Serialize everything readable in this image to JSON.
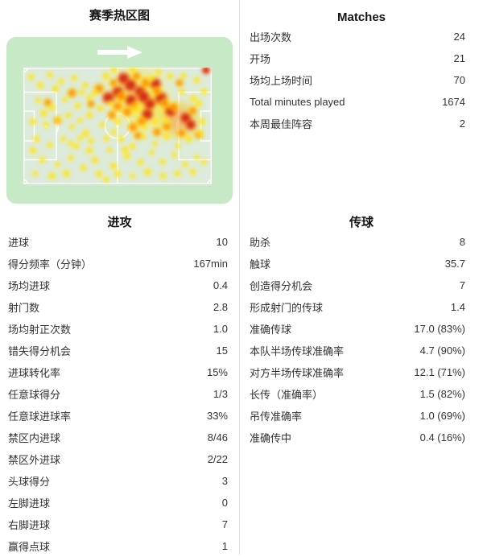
{
  "page": {
    "background": "#ffffff",
    "divider_color": "#e4e4e4",
    "text_color": "#333333",
    "title_color": "#151515"
  },
  "heatmap_section": {
    "title": "赛季热区图",
    "pitch": {
      "container_color": "#c7e9c5",
      "field_color": "#dcebdb",
      "line_color": "#ffffff",
      "arrow_color": "#ffffff",
      "heat_colors": {
        "low": "#ffe200",
        "mid": "#ff8a00",
        "high": "#cc2112"
      }
    },
    "points": [
      [
        60,
        22,
        0.5,
        120
      ],
      [
        68,
        35,
        0.5,
        90
      ],
      [
        83,
        45,
        0.55,
        70
      ],
      [
        53,
        9,
        1
      ],
      [
        57,
        15,
        0.95
      ],
      [
        50,
        21,
        0.9
      ],
      [
        62,
        21,
        1
      ],
      [
        67,
        31,
        0.95
      ],
      [
        66,
        40,
        0.9
      ],
      [
        57,
        28,
        0.9
      ],
      [
        73,
        26,
        0.9
      ],
      [
        86,
        43,
        0.95
      ],
      [
        89,
        49,
        0.9
      ],
      [
        97,
        2,
        1,
        16
      ],
      [
        45,
        26,
        0.88
      ],
      [
        70,
        14,
        0.9
      ],
      [
        78,
        37,
        0.88
      ],
      [
        48,
        13,
        0.7
      ],
      [
        60,
        7,
        0.65
      ],
      [
        65,
        13,
        0.7
      ],
      [
        71,
        20,
        0.75
      ],
      [
        75,
        31,
        0.7
      ],
      [
        63,
        46,
        0.65
      ],
      [
        55,
        38,
        0.7
      ],
      [
        50,
        33,
        0.65
      ],
      [
        80,
        34,
        0.7
      ],
      [
        84,
        56,
        0.65
      ],
      [
        90,
        37,
        0.7
      ],
      [
        47,
        41,
        0.6
      ],
      [
        58,
        51,
        0.65
      ],
      [
        40,
        18,
        0.6
      ],
      [
        36,
        31,
        0.6
      ],
      [
        61,
        58,
        0.6
      ],
      [
        93,
        57,
        0.6
      ],
      [
        26,
        22,
        0.6
      ],
      [
        18,
        45,
        0.6
      ],
      [
        13,
        30,
        0.65
      ],
      [
        83,
        13,
        0.6
      ],
      [
        76,
        50,
        0.65
      ],
      [
        71,
        55,
        0.6
      ],
      [
        52,
        25,
        0.75
      ],
      [
        59,
        33,
        0.8
      ],
      [
        64,
        25,
        0.85
      ],
      [
        4,
        8
      ],
      [
        9,
        15
      ],
      [
        14,
        6
      ],
      [
        20,
        12
      ],
      [
        27,
        9
      ],
      [
        33,
        15
      ],
      [
        8,
        28
      ],
      [
        15,
        34
      ],
      [
        22,
        27
      ],
      [
        29,
        33
      ],
      [
        35,
        41
      ],
      [
        5,
        46
      ],
      [
        12,
        49
      ],
      [
        19,
        44
      ],
      [
        26,
        51
      ],
      [
        33,
        56
      ],
      [
        7,
        61
      ],
      [
        14,
        66
      ],
      [
        21,
        61
      ],
      [
        28,
        67
      ],
      [
        35,
        71
      ],
      [
        10,
        79
      ],
      [
        18,
        83
      ],
      [
        25,
        77
      ],
      [
        32,
        86
      ],
      [
        6,
        91
      ],
      [
        15,
        93
      ],
      [
        23,
        91
      ],
      [
        38,
        79
      ],
      [
        40,
        91
      ],
      [
        44,
        61
      ],
      [
        42,
        49
      ],
      [
        38,
        22
      ],
      [
        44,
        7
      ],
      [
        46,
        71
      ],
      [
        48,
        84
      ],
      [
        41,
        35
      ],
      [
        52,
        61
      ],
      [
        58,
        67
      ],
      [
        64,
        59
      ],
      [
        70,
        65
      ],
      [
        76,
        59
      ],
      [
        82,
        67
      ],
      [
        88,
        61
      ],
      [
        94,
        56
      ],
      [
        55,
        76
      ],
      [
        62,
        81
      ],
      [
        68,
        73
      ],
      [
        74,
        81
      ],
      [
        80,
        75
      ],
      [
        86,
        83
      ],
      [
        92,
        77
      ],
      [
        50,
        91
      ],
      [
        58,
        93
      ],
      [
        66,
        89
      ],
      [
        74,
        93
      ],
      [
        82,
        91
      ],
      [
        90,
        89
      ],
      [
        96,
        81
      ],
      [
        96,
        20
      ],
      [
        92,
        11
      ],
      [
        85,
        7
      ],
      [
        78,
        7
      ],
      [
        72,
        4
      ],
      [
        95,
        46
      ],
      [
        93,
        31
      ],
      [
        50,
        46
      ],
      [
        46,
        31
      ],
      [
        31,
        21
      ],
      [
        24,
        41
      ],
      [
        11,
        39
      ],
      [
        17,
        18
      ],
      [
        5,
        71
      ],
      [
        44,
        96
      ],
      [
        36,
        63
      ],
      [
        60,
        36
      ],
      [
        64,
        51
      ],
      [
        70,
        46
      ],
      [
        76,
        46
      ],
      [
        68,
        9
      ],
      [
        58,
        2
      ],
      [
        48,
        2
      ],
      [
        84,
        21
      ],
      [
        90,
        26
      ],
      [
        54,
        70
      ],
      [
        48,
        55
      ],
      [
        30,
        60
      ],
      [
        25,
        65
      ],
      [
        35,
        25
      ],
      [
        30,
        45
      ]
    ]
  },
  "matches_section": {
    "title": "Matches",
    "rows": [
      {
        "label": "出场次数",
        "value": "24"
      },
      {
        "label": "开场",
        "value": "21"
      },
      {
        "label": "场均上场时间",
        "value": "70"
      },
      {
        "label": "Total minutes played",
        "value": "1674"
      },
      {
        "label": "本周最佳阵容",
        "value": "2"
      }
    ]
  },
  "attack_section": {
    "title": "进攻",
    "rows": [
      {
        "label": "进球",
        "value": "10"
      },
      {
        "label": "得分频率（分钟）",
        "value": "167min"
      },
      {
        "label": "场均进球",
        "value": "0.4"
      },
      {
        "label": "射门数",
        "value": "2.8"
      },
      {
        "label": "场均射正次数",
        "value": "1.0"
      },
      {
        "label": "错失得分机会",
        "value": "15"
      },
      {
        "label": "进球转化率",
        "value": "15%"
      },
      {
        "label": "任意球得分",
        "value": "1/3"
      },
      {
        "label": "任意球进球率",
        "value": "33%"
      },
      {
        "label": "禁区内进球",
        "value": "8/46"
      },
      {
        "label": "禁区外进球",
        "value": "2/22"
      },
      {
        "label": "头球得分",
        "value": "3"
      },
      {
        "label": "左脚进球",
        "value": "0"
      },
      {
        "label": "右脚进球",
        "value": "7"
      },
      {
        "label": "赢得点球",
        "value": "1"
      }
    ]
  },
  "passing_section": {
    "title": "传球",
    "rows": [
      {
        "label": "助杀",
        "value": "8"
      },
      {
        "label": "触球",
        "value": "35.7"
      },
      {
        "label": "创造得分机会",
        "value": "7"
      },
      {
        "label": "形成射门的传球",
        "value": "1.4"
      },
      {
        "label": "准确传球",
        "value": "17.0 (83%)"
      },
      {
        "label": "本队半场传球准确率",
        "value": "4.7 (90%)"
      },
      {
        "label": "对方半场传球准确率",
        "value": "12.1 (71%)"
      },
      {
        "label": "长传（准确率）",
        "value": "1.5 (82%)"
      },
      {
        "label": "吊传准确率",
        "value": "1.0 (69%)"
      },
      {
        "label": "准确传中",
        "value": "0.4 (16%)"
      }
    ]
  }
}
